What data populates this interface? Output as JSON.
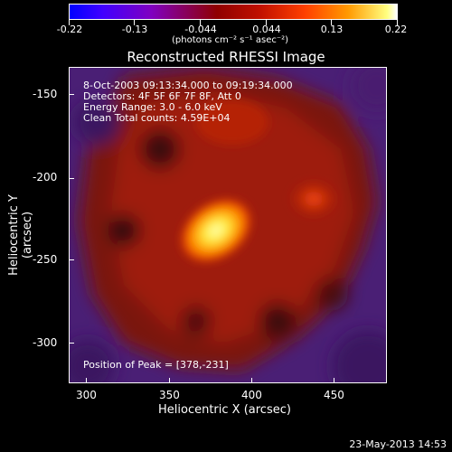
{
  "colorbar": {
    "ticks": [
      "-0.22",
      "-0.13",
      "-0.044",
      "0.044",
      "0.13",
      "0.22"
    ],
    "units": "(photons cm⁻² s⁻¹ asec⁻²)"
  },
  "title": "Reconstructed RHESSI Image",
  "info": {
    "time_range": "8-Oct-2003 09:13:34.000 to 09:19:34.000",
    "detectors": "Detectors: 4F 5F 6F 7F 8F, Att 0",
    "energy": "Energy Range: 3.0 - 6.0 keV",
    "clean": "Clean     Total counts: 4.59E+04",
    "peak": "Position of Peak = [378,-231]"
  },
  "axes": {
    "xlabel": "Heliocentric X (arcsec)",
    "ylabel": "Heliocentric Y (arcsec)",
    "xticks": [
      "300",
      "350",
      "400",
      "450"
    ],
    "yticks": [
      "-150",
      "-200",
      "-250",
      "-300"
    ]
  },
  "footer": "23-May-2013 14:53",
  "colors": {
    "background": "#000000",
    "foreground": "#ffffff"
  }
}
